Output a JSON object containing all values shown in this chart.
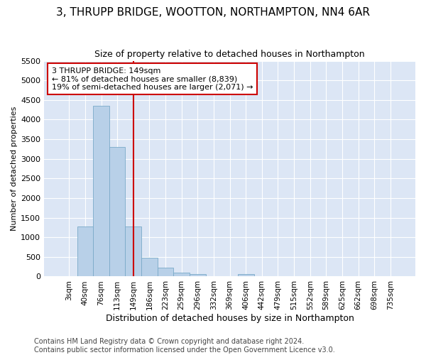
{
  "title": "3, THRUPP BRIDGE, WOOTTON, NORTHAMPTON, NN4 6AR",
  "subtitle": "Size of property relative to detached houses in Northampton",
  "xlabel": "Distribution of detached houses by size in Northampton",
  "ylabel": "Number of detached properties",
  "categories": [
    "3sqm",
    "40sqm",
    "76sqm",
    "113sqm",
    "149sqm",
    "186sqm",
    "223sqm",
    "259sqm",
    "296sqm",
    "332sqm",
    "369sqm",
    "406sqm",
    "442sqm",
    "479sqm",
    "515sqm",
    "552sqm",
    "589sqm",
    "625sqm",
    "662sqm",
    "698sqm",
    "735sqm"
  ],
  "values": [
    0,
    1280,
    4350,
    3300,
    1280,
    480,
    230,
    100,
    60,
    0,
    0,
    60,
    0,
    0,
    0,
    0,
    0,
    0,
    0,
    0,
    0
  ],
  "bar_color": "#b8d0e8",
  "bar_edge_color": "#7aaac8",
  "vline_x_idx": 4,
  "vline_color": "#cc0000",
  "annotation_line1": "3 THRUPP BRIDGE: 149sqm",
  "annotation_line2": "← 81% of detached houses are smaller (8,839)",
  "annotation_line3": "19% of semi-detached houses are larger (2,071) →",
  "annotation_box_facecolor": "#ffffff",
  "annotation_box_edgecolor": "#cc0000",
  "ylim": [
    0,
    5500
  ],
  "yticks": [
    0,
    500,
    1000,
    1500,
    2000,
    2500,
    3000,
    3500,
    4000,
    4500,
    5000,
    5500
  ],
  "footer_line1": "Contains HM Land Registry data © Crown copyright and database right 2024.",
  "footer_line2": "Contains public sector information licensed under the Open Government Licence v3.0.",
  "fig_bg_color": "#ffffff",
  "plot_bg_color": "#dce6f5",
  "grid_color": "#ffffff",
  "title_fontsize": 11,
  "subtitle_fontsize": 9,
  "xlabel_fontsize": 9,
  "ylabel_fontsize": 8,
  "tick_fontsize": 8,
  "xtick_fontsize": 7.5,
  "footer_fontsize": 7
}
